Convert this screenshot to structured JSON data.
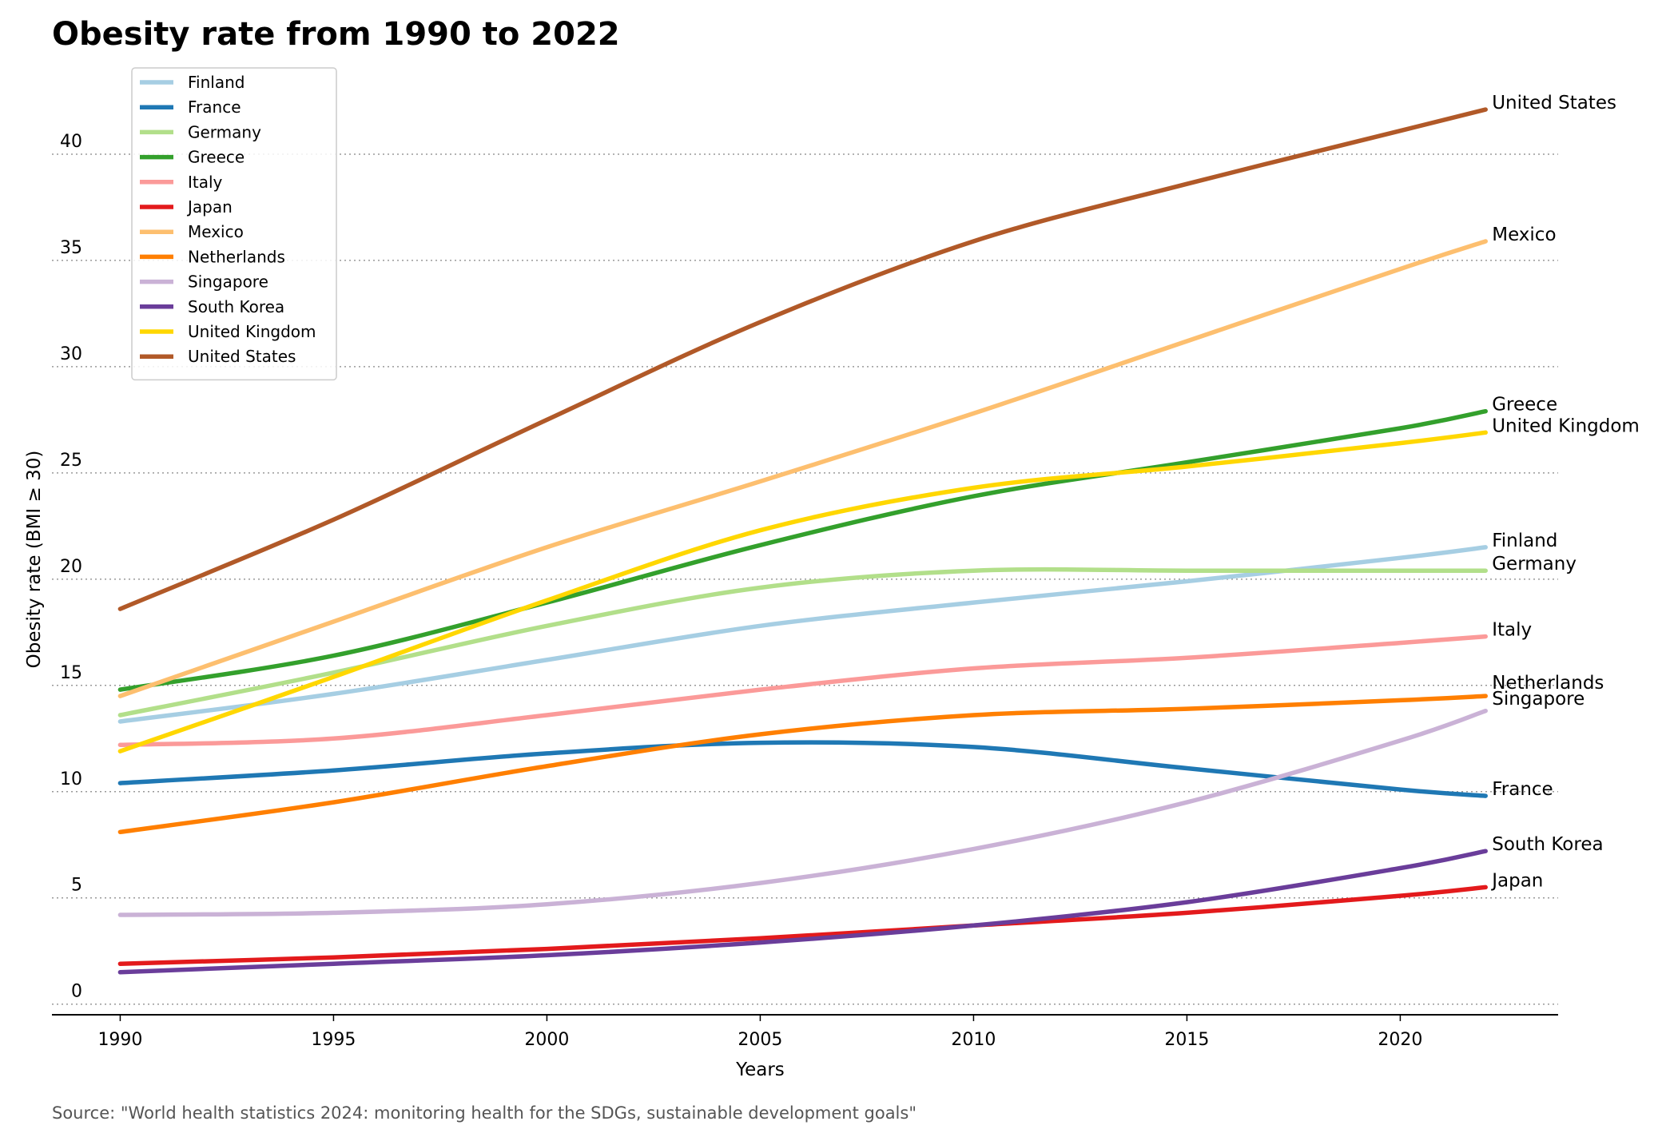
{
  "title": "Obesity rate from 1990 to 2022",
  "source": "Source: \"World health statistics 2024: monitoring health for the SDGs, sustainable development goals\"",
  "chart_data": {
    "type": "line",
    "title": "Obesity rate from 1990 to 2022",
    "xlabel": "Years",
    "ylabel": "Obesity rate (BMI ≥ 30)",
    "xlim": [
      1988.4,
      2023.7
    ],
    "ylim": [
      -0.5,
      45
    ],
    "xticks": [
      1990,
      1995,
      2000,
      2005,
      2010,
      2015,
      2020
    ],
    "yticks": [
      0,
      5,
      10,
      15,
      20,
      25,
      30,
      35,
      40
    ],
    "grid": "horizontal dotted",
    "legend_position": "top-left",
    "x": [
      1990,
      1995,
      2000,
      2005,
      2010,
      2015,
      2020,
      2022
    ],
    "series": [
      {
        "name": "Finland",
        "color": "#a6cee3",
        "values": [
          13.3,
          14.6,
          16.2,
          17.8,
          18.9,
          19.9,
          21.0,
          21.5
        ]
      },
      {
        "name": "France",
        "color": "#1f78b4",
        "values": [
          10.4,
          11.0,
          11.8,
          12.3,
          12.1,
          11.1,
          10.1,
          9.8
        ]
      },
      {
        "name": "Germany",
        "color": "#b2df8a",
        "values": [
          13.6,
          15.6,
          17.8,
          19.6,
          20.4,
          20.4,
          20.4,
          20.4
        ]
      },
      {
        "name": "Greece",
        "color": "#33a02c",
        "values": [
          14.8,
          16.4,
          18.9,
          21.6,
          23.9,
          25.5,
          27.1,
          27.9
        ]
      },
      {
        "name": "Italy",
        "color": "#fb9a99",
        "values": [
          12.2,
          12.5,
          13.6,
          14.8,
          15.8,
          16.3,
          17.0,
          17.3
        ]
      },
      {
        "name": "Japan",
        "color": "#e31a1c",
        "values": [
          1.9,
          2.2,
          2.6,
          3.1,
          3.7,
          4.3,
          5.1,
          5.5
        ]
      },
      {
        "name": "Mexico",
        "color": "#fdbf6f",
        "values": [
          14.5,
          18.0,
          21.5,
          24.6,
          27.8,
          31.2,
          34.6,
          35.9
        ]
      },
      {
        "name": "Netherlands",
        "color": "#ff7f00",
        "values": [
          8.1,
          9.5,
          11.2,
          12.7,
          13.6,
          13.9,
          14.3,
          14.5
        ]
      },
      {
        "name": "Singapore",
        "color": "#cab2d6",
        "values": [
          4.2,
          4.3,
          4.7,
          5.7,
          7.3,
          9.5,
          12.4,
          13.8
        ]
      },
      {
        "name": "South Korea",
        "color": "#6a3d9a",
        "values": [
          1.5,
          1.9,
          2.3,
          2.9,
          3.7,
          4.8,
          6.4,
          7.2
        ]
      },
      {
        "name": "United Kingdom",
        "color": "#ffd700",
        "values": [
          11.9,
          15.4,
          19.0,
          22.3,
          24.3,
          25.3,
          26.4,
          26.9
        ]
      },
      {
        "name": "United States",
        "color": "#b15928",
        "values": [
          18.6,
          22.8,
          27.5,
          32.1,
          35.9,
          38.6,
          41.1,
          42.1
        ]
      }
    ],
    "end_label_nudge": {
      "Netherlands": 0.3,
      "Singapore": 0.25
    }
  }
}
